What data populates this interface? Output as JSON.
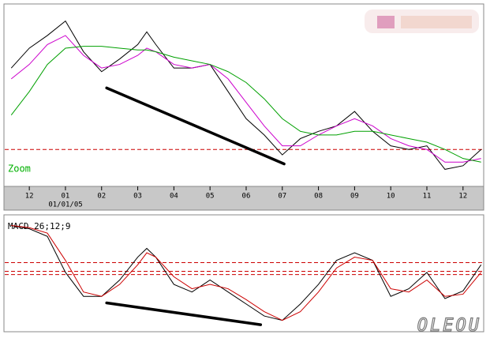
{
  "chart_data": [
    {
      "type": "line",
      "x": [
        -0.5,
        0,
        0.5,
        1,
        1.5,
        2,
        2.5,
        3,
        3.25,
        3.5,
        4,
        4.5,
        5,
        5.5,
        6,
        6.5,
        7,
        7.5,
        8,
        8.5,
        9,
        9.5,
        10,
        10.5,
        11,
        11.5,
        12,
        12.5
      ],
      "series": [
        {
          "color": "#000000",
          "values": [
            65,
            76,
            83,
            91,
            74,
            63,
            70,
            78,
            85,
            78,
            65,
            65,
            67,
            52,
            37,
            28,
            17,
            26,
            30,
            33,
            41,
            30,
            22,
            20,
            22,
            9,
            11,
            20
          ]
        },
        {
          "color": "#cc00cc",
          "values": [
            59,
            67,
            78,
            83,
            72,
            65,
            67,
            72,
            76,
            74,
            67,
            65,
            67,
            59,
            46,
            33,
            22,
            22,
            28,
            33,
            37,
            33,
            26,
            22,
            20,
            13,
            13,
            15
          ]
        },
        {
          "color": "#00a000",
          "values": [
            39,
            52,
            67,
            76,
            77,
            77,
            76,
            75,
            75,
            74,
            71,
            69,
            67,
            63,
            57,
            48,
            37,
            30,
            28,
            28,
            30,
            30,
            28,
            26,
            24,
            20,
            15,
            13
          ]
        }
      ],
      "xlim": [
        -0.68,
        12.55
      ],
      "xticks": [
        {
          "value": 0,
          "label": "12"
        },
        {
          "value": 1,
          "label": "01"
        },
        {
          "value": 2,
          "label": "02"
        },
        {
          "value": 3,
          "label": "03"
        },
        {
          "value": 4,
          "label": "04"
        },
        {
          "value": 5,
          "label": "05"
        },
        {
          "value": 6,
          "label": "06"
        },
        {
          "value": 7,
          "label": "07"
        },
        {
          "value": 8,
          "label": "08"
        },
        {
          "value": 9,
          "label": "09"
        },
        {
          "value": 10,
          "label": "10"
        },
        {
          "value": 11,
          "label": "11"
        },
        {
          "value": 12,
          "label": "12"
        }
      ],
      "ylim": [
        0,
        100
      ],
      "date_label": "01/01/05",
      "annotation": "Zoom",
      "hlines": [
        20
      ],
      "trendline": {
        "x": [
          2.14,
          7.05
        ],
        "y": [
          54,
          12
        ]
      }
    },
    {
      "type": "line",
      "title": "MACD 26;12;9",
      "x": [
        -0.5,
        0,
        0.5,
        1,
        1.5,
        2,
        2.5,
        3,
        3.25,
        3.5,
        4,
        4.5,
        5,
        5.5,
        6,
        6.5,
        7,
        7.5,
        8,
        8.5,
        9,
        9.5,
        10,
        10.5,
        11,
        11.5,
        12,
        12.5
      ],
      "series": [
        {
          "color": "#000000",
          "values": [
            96,
            93,
            86,
            53,
            31,
            31,
            46,
            67,
            75,
            67,
            42,
            35,
            46,
            35,
            24,
            13,
            9,
            24,
            42,
            64,
            71,
            64,
            31,
            38,
            53,
            29,
            36,
            60
          ]
        },
        {
          "color": "#cc0000",
          "values": [
            96,
            94,
            89,
            64,
            35,
            31,
            42,
            60,
            71,
            67,
            49,
            38,
            42,
            38,
            28,
            17,
            9,
            17,
            35,
            57,
            67,
            64,
            38,
            35,
            46,
            31,
            33,
            53
          ]
        }
      ],
      "xlim": [
        -0.68,
        12.55
      ],
      "ylim": [
        0,
        100
      ],
      "hlines": [
        62,
        54,
        51
      ],
      "trendline": {
        "x": [
          2.14,
          6.4
        ],
        "y": [
          25,
          5
        ]
      }
    }
  ],
  "watermark": "OLEOU"
}
